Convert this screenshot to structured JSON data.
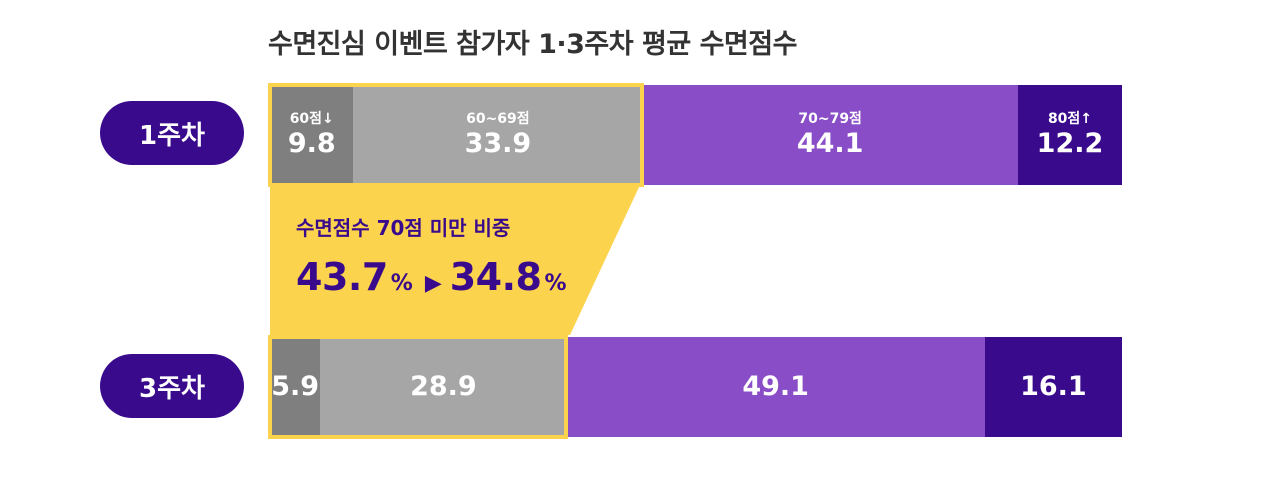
{
  "chart_data": {
    "type": "bar",
    "orientation": "horizontal",
    "stacked": true,
    "title": "수면진심 이벤트 참가자 1·3주차 평균 수면점수",
    "segment_labels": [
      "60점↓",
      "60~69점",
      "70~79점",
      "80점↑"
    ],
    "colors": [
      "#7f7f7f",
      "#a6a6a6",
      "#8a4dc8",
      "#3a0a8c"
    ],
    "rows": [
      {
        "label": "1주차",
        "values": [
          9.8,
          33.9,
          44.1,
          12.2
        ],
        "value_labels": [
          "9.8",
          "33.9",
          "44.1",
          "12.2"
        ]
      },
      {
        "label": "3주차",
        "values": [
          5.9,
          28.9,
          49.1,
          16.1
        ],
        "value_labels": [
          "5.9",
          "28.9",
          "49.1",
          "16.1"
        ]
      }
    ]
  },
  "callout": {
    "label": "수면점수 70점 미만 비중",
    "from_value": "43.7",
    "to_value": "34.8",
    "unit": "%",
    "fill_color": "#fcd34d"
  }
}
